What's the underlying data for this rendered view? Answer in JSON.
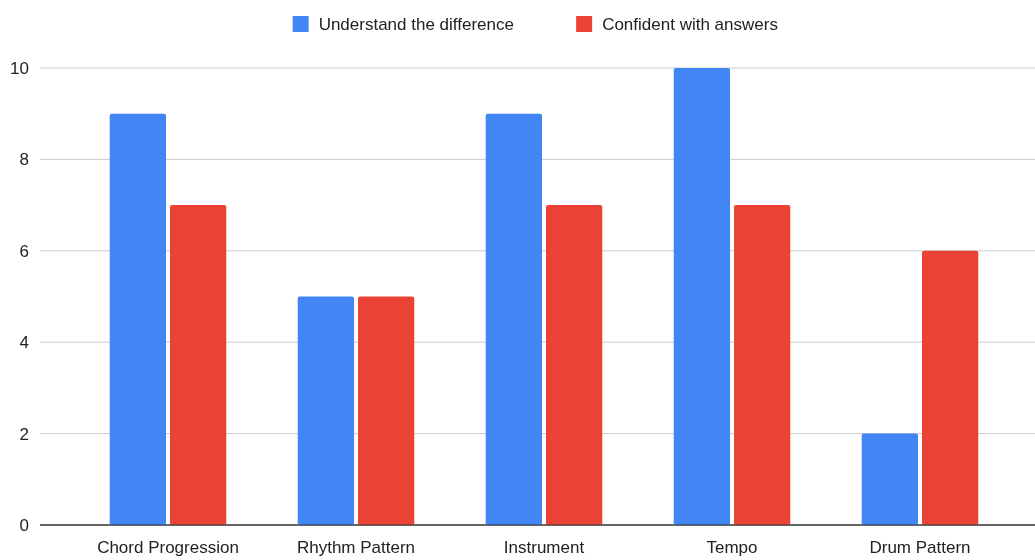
{
  "chart_data": {
    "type": "bar",
    "categories": [
      "Chord Progression",
      "Rhythm Pattern",
      "Instrument",
      "Tempo",
      "Drum Pattern"
    ],
    "series": [
      {
        "name": "Understand the difference",
        "color": "#4285f4",
        "values": [
          9,
          5,
          9,
          10,
          2
        ]
      },
      {
        "name": "Confident with answers",
        "color": "#ea4335",
        "values": [
          7,
          5,
          7,
          7,
          6
        ]
      }
    ],
    "ylim": [
      0,
      10
    ],
    "yticks": [
      0,
      2,
      4,
      6,
      8,
      10
    ],
    "grid": "y",
    "legend": "top"
  }
}
